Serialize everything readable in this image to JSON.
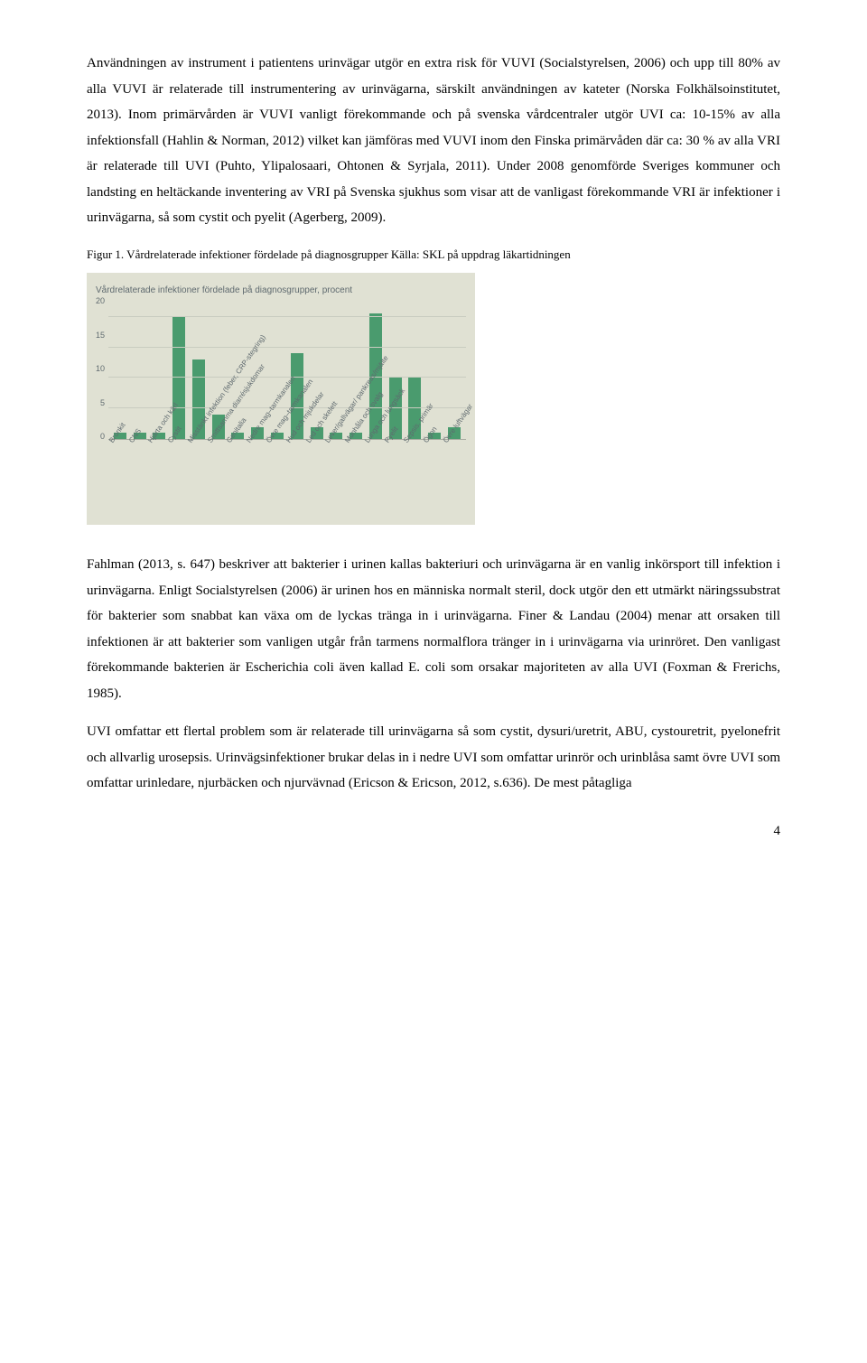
{
  "para1": "Användningen av instrument i patientens urinvägar utgör en extra risk för VUVI (Socialstyrelsen, 2006) och upp till 80% av alla VUVI är relaterade till instrumentering av urinvägarna, särskilt användningen av kateter (Norska Folkhälsoinstitutet, 2013). Inom primärvården är VUVI vanligt förekommande och på svenska vårdcentraler utgör UVI ca: 10-15% av alla infektionsfall (Hahlin & Norman, 2012) vilket kan jämföras med VUVI inom den Finska primärvåden där ca: 30 % av alla VRI är relaterade till UVI (Puhto, Ylipalosaari, Ohtonen & Syrjala, 2011). Under 2008 genomförde Sveriges kommuner och landsting en heltäckande inventering av VRI på Svenska sjukhus som visar att de vanligast förekommande VRI är infektioner i urinvägarna, så som cystit och pyelit (Agerberg, 2009).",
  "figCaption": "Figur 1. Vårdrelaterade infektioner fördelade på diagnosgrupper Källa: SKL på uppdrag läkartidningen",
  "chart": {
    "title": "Vårdrelaterade infektioner fördelade på diagnosgrupper, procent",
    "bar_color": "#4a9b6e",
    "grid_color": "#c9ccc0",
    "bg_color": "#e0e1d3",
    "text_color": "#5f6a6f",
    "ylim_max": 22,
    "yticks": [
      20,
      15,
      10,
      5,
      0
    ],
    "categories": [
      "Bronkit",
      "CNS",
      "Hjärta och kärl",
      "Cystit",
      "Misstänkt infektion (feber, CRP-stegring)",
      "Smittsamma diarrésjukdomar",
      "Genitalia",
      "Nedre mag–tarmkanalen",
      "Övre mag–tarmkanalen",
      "Hud och mjukdelar",
      "Led och skelett",
      "Lever/gallvägar/ pankreas/mjälte",
      "Munhåla och svalg",
      "Lunga och lungsäck",
      "Pyelit",
      "Sepsis, primär",
      "Ögon",
      "Övre luftvägar"
    ],
    "values": [
      1,
      1,
      1,
      20,
      13,
      4,
      1,
      2,
      1,
      14,
      2,
      1,
      1,
      20.5,
      10,
      10,
      1,
      2
    ]
  },
  "para2": "Fahlman (2013, s. 647) beskriver att bakterier i urinen kallas bakteriuri och urinvägarna är en vanlig inkörsport till infektion i urinvägarna. Enligt Socialstyrelsen (2006) är urinen hos en människa normalt steril, dock utgör den ett utmärkt näringssubstrat för bakterier som snabbat kan växa om de lyckas tränga in i urinvägarna. Finer & Landau (2004) menar att orsaken till infektionen är att bakterier som vanligen utgår från tarmens normalflora tränger in i urinvägarna via urinröret. Den vanligast förekommande bakterien är Escherichia coli även kallad E. coli som orsakar majoriteten av alla UVI (Foxman & Frerichs, 1985).",
  "para3": "UVI omfattar ett flertal problem som är relaterade till urinvägarna så som cystit, dysuri/uretrit, ABU, cystouretrit, pyelonefrit och allvarlig urosepsis. Urinvägsinfektioner brukar delas in i nedre UVI som omfattar urinrör och urinblåsa samt övre UVI som omfattar urinledare, njurbäcken och njurvävnad (Ericson & Ericson, 2012, s.636). De mest påtagliga",
  "pageNum": "4"
}
